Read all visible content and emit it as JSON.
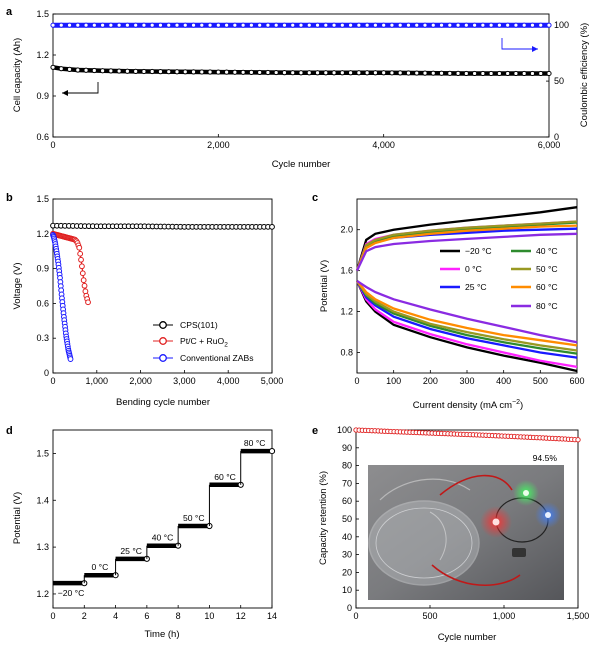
{
  "chart_data": [
    {
      "panel": "a",
      "type": "line",
      "xlabel": "Cycle number",
      "ylabel": "Cell capacity (Ah)",
      "y2label": "Coulombic efficiency (%)",
      "xlim": [
        0,
        6000
      ],
      "ylim": [
        0.6,
        1.5
      ],
      "y2lim": [
        0,
        110
      ],
      "xticks": [
        "0",
        "2,000",
        "4,000",
        "6,000"
      ],
      "yticks": [
        "0.6",
        "0.9",
        "1.2",
        "1.5"
      ],
      "y2ticks": [
        "0",
        "50",
        "100"
      ],
      "series": [
        {
          "axis": "left",
          "color": "#000000",
          "x": [
            0,
            100,
            300,
            600,
            1000,
            2000,
            3000,
            4000,
            5000,
            6000
          ],
          "values": [
            1.11,
            1.1,
            1.09,
            1.085,
            1.08,
            1.075,
            1.07,
            1.07,
            1.065,
            1.065
          ]
        },
        {
          "axis": "right",
          "color": "#1a1aff",
          "x": [
            0,
            6000
          ],
          "values": [
            100,
            100
          ]
        }
      ]
    },
    {
      "panel": "b",
      "type": "line",
      "xlabel": "Bending cycle number",
      "ylabel": "Voltage (V)",
      "xlim": [
        0,
        5000
      ],
      "ylim": [
        0,
        1.5
      ],
      "xticks": [
        "0",
        "1,000",
        "2,000",
        "3,000",
        "4,000",
        "5,000"
      ],
      "yticks": [
        "0",
        "0.3",
        "0.6",
        "0.9",
        "1.2",
        "1.5"
      ],
      "legend_position": "bottom-right",
      "series": [
        {
          "name": "CPS(101)",
          "color": "#000000",
          "x": [
            0,
            1000,
            2000,
            3000,
            4000,
            5000
          ],
          "values": [
            1.27,
            1.265,
            1.265,
            1.26,
            1.26,
            1.26
          ]
        },
        {
          "name": "Pt/C + RuO2",
          "name_parts": [
            "Pt/C + RuO",
            "2"
          ],
          "color": "#e02020",
          "x": [
            0,
            100,
            200,
            300,
            400,
            500,
            550,
            600,
            650,
            700,
            750,
            800
          ],
          "values": [
            1.2,
            1.19,
            1.18,
            1.17,
            1.16,
            1.15,
            1.13,
            1.08,
            0.95,
            0.8,
            0.68,
            0.61
          ]
        },
        {
          "name": "Conventional ZABs",
          "color": "#1a1aff",
          "x": [
            0,
            20,
            50,
            80,
            120,
            160,
            200,
            250,
            300,
            350,
            400
          ],
          "values": [
            1.19,
            1.17,
            1.12,
            1.05,
            0.95,
            0.82,
            0.66,
            0.48,
            0.32,
            0.2,
            0.12
          ]
        }
      ]
    },
    {
      "panel": "c",
      "type": "line",
      "xlabel": "Current density (mA cm",
      "xlabel_sup": "−2",
      "xlabel_close": ")",
      "ylabel": "Potential (V)",
      "xlim": [
        0,
        600
      ],
      "ylim": [
        0.6,
        2.3
      ],
      "xticks": [
        "0",
        "100",
        "200",
        "300",
        "400",
        "500",
        "600"
      ],
      "yticks": [
        "0.8",
        "1.2",
        "1.6",
        "2.0"
      ],
      "x": [
        0,
        25,
        50,
        100,
        200,
        300,
        400,
        500,
        600
      ],
      "series": [
        {
          "name": "−20 °C",
          "color": "#000000",
          "charge": [
            1.6,
            1.9,
            1.96,
            2.0,
            2.05,
            2.09,
            2.13,
            2.17,
            2.22
          ],
          "discharge": [
            1.5,
            1.3,
            1.2,
            1.07,
            0.95,
            0.85,
            0.77,
            0.7,
            0.62
          ]
        },
        {
          "name": "0 °C",
          "color": "#ff22ff",
          "charge": [
            1.6,
            1.86,
            1.91,
            1.95,
            1.99,
            2.02,
            2.04,
            2.06,
            2.08
          ],
          "discharge": [
            1.5,
            1.32,
            1.22,
            1.1,
            0.98,
            0.88,
            0.8,
            0.72,
            0.66
          ]
        },
        {
          "name": "25 °C",
          "color": "#1a1aff",
          "charge": [
            1.6,
            1.83,
            1.88,
            1.92,
            1.95,
            1.97,
            1.99,
            2.0,
            2.01
          ],
          "discharge": [
            1.5,
            1.34,
            1.26,
            1.15,
            1.03,
            0.94,
            0.87,
            0.8,
            0.75
          ]
        },
        {
          "name": "40 °C",
          "color": "#2e8b2e",
          "charge": [
            1.6,
            1.84,
            1.89,
            1.94,
            1.98,
            2.01,
            2.03,
            2.05,
            2.07
          ],
          "discharge": [
            1.5,
            1.36,
            1.28,
            1.18,
            1.06,
            0.97,
            0.9,
            0.84,
            0.79
          ]
        },
        {
          "name": "50 °C",
          "color": "#999922",
          "charge": [
            1.6,
            1.85,
            1.9,
            1.95,
            1.99,
            2.02,
            2.04,
            2.06,
            2.08
          ],
          "discharge": [
            1.5,
            1.37,
            1.3,
            1.2,
            1.08,
            1.0,
            0.93,
            0.87,
            0.82
          ]
        },
        {
          "name": "60 °C",
          "color": "#ff8c00",
          "charge": [
            1.6,
            1.82,
            1.87,
            1.92,
            1.96,
            1.99,
            2.01,
            2.03,
            2.04
          ],
          "discharge": [
            1.5,
            1.39,
            1.32,
            1.23,
            1.12,
            1.04,
            0.97,
            0.92,
            0.87
          ]
        },
        {
          "name": "80 °C",
          "color": "#8a2be2",
          "charge": [
            1.6,
            1.79,
            1.83,
            1.86,
            1.89,
            1.91,
            1.93,
            1.95,
            1.96
          ],
          "discharge": [
            1.5,
            1.44,
            1.39,
            1.32,
            1.22,
            1.13,
            1.05,
            0.97,
            0.9
          ]
        }
      ]
    },
    {
      "panel": "d",
      "type": "line",
      "xlabel": "Time (h)",
      "ylabel": "Potential (V)",
      "xlim": [
        0,
        14
      ],
      "ylim": [
        1.17,
        1.55
      ],
      "xticks": [
        "0",
        "2",
        "4",
        "6",
        "8",
        "10",
        "12",
        "14"
      ],
      "yticks": [
        "1.2",
        "1.3",
        "1.4",
        "1.5"
      ],
      "steps": [
        {
          "label": "−20 °C",
          "x": [
            0,
            2
          ],
          "value": 1.223
        },
        {
          "label": "0 °C",
          "x": [
            2,
            4
          ],
          "value": 1.24
        },
        {
          "label": "25 °C",
          "x": [
            4,
            6
          ],
          "value": 1.275
        },
        {
          "label": "40 °C",
          "x": [
            6,
            8
          ],
          "value": 1.303
        },
        {
          "label": "50 °C",
          "x": [
            8,
            10
          ],
          "value": 1.345
        },
        {
          "label": "60 °C",
          "x": [
            10,
            12
          ],
          "value": 1.433
        },
        {
          "label": "80 °C",
          "x": [
            12,
            14
          ],
          "value": 1.505
        }
      ]
    },
    {
      "panel": "e",
      "type": "line",
      "xlabel": "Cycle number",
      "ylabel": "Capacity retention (%)",
      "xlim": [
        0,
        1500
      ],
      "ylim": [
        0,
        100
      ],
      "xticks": [
        "0",
        "500",
        "1,000",
        "1,500"
      ],
      "yticks": [
        "0",
        "10",
        "20",
        "30",
        "40",
        "50",
        "60",
        "70",
        "80",
        "90",
        "100"
      ],
      "annotation": "94.5%",
      "series": [
        {
          "color": "#e02020",
          "x": [
            0,
            200,
            400,
            600,
            800,
            1000,
            1200,
            1400,
            1500
          ],
          "values": [
            100,
            99.3,
            98.6,
            98.0,
            97.3,
            96.6,
            95.8,
            95.0,
            94.5
          ]
        }
      ]
    }
  ],
  "panel_letters": [
    "a",
    "b",
    "c",
    "d",
    "e"
  ],
  "colors": {
    "black": "#000000",
    "blue": "#1a1aff",
    "red": "#e02020"
  }
}
